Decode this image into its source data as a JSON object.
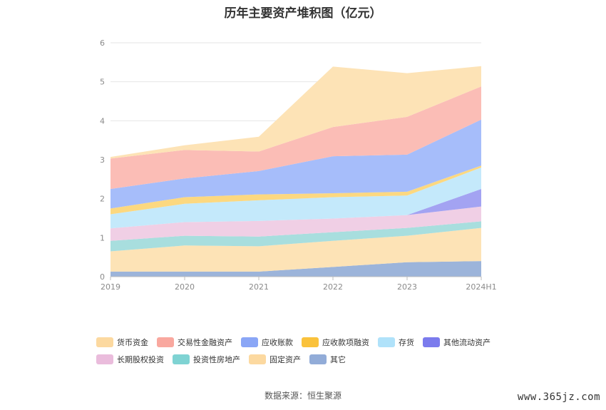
{
  "title": "历年主要资产堆积图（亿元）",
  "source": "数据来源：恒生聚源",
  "watermark": "www.365jz.com",
  "chart_data": {
    "type": "area",
    "stacked": true,
    "title": "历年主要资产堆积图（亿元）",
    "categories": [
      "2019",
      "2020",
      "2021",
      "2022",
      "2023",
      "2024H1"
    ],
    "ylim": [
      0,
      6
    ],
    "yticks": [
      0,
      1,
      2,
      3,
      4,
      5,
      6
    ],
    "grid": true,
    "legend_position": "bottom",
    "series": [
      {
        "name": "其它",
        "color": "#9cb4da",
        "values": [
          0.13,
          0.13,
          0.13,
          0.25,
          0.37,
          0.4
        ]
      },
      {
        "name": "固定资产",
        "color": "#fde3b6",
        "values": [
          0.52,
          0.67,
          0.65,
          0.67,
          0.68,
          0.85
        ]
      },
      {
        "name": "投资性房地产",
        "color": "#a8dede",
        "values": [
          0.27,
          0.25,
          0.25,
          0.22,
          0.2,
          0.17
        ]
      },
      {
        "name": "长期股权投资",
        "color": "#f0cfe5",
        "values": [
          0.32,
          0.35,
          0.4,
          0.35,
          0.33,
          0.38
        ]
      },
      {
        "name": "其他流动资产",
        "color": "#a3a3f2",
        "values": [
          0.0,
          0.0,
          0.0,
          0.0,
          0.0,
          0.45
        ]
      },
      {
        "name": "存货",
        "color": "#c4e9fb",
        "values": [
          0.36,
          0.47,
          0.53,
          0.55,
          0.5,
          0.55
        ]
      },
      {
        "name": "应收款项融资",
        "color": "#fcd880",
        "values": [
          0.15,
          0.17,
          0.15,
          0.1,
          0.1,
          0.05
        ]
      },
      {
        "name": "应收账款",
        "color": "#a6bdfa",
        "values": [
          0.5,
          0.48,
          0.6,
          0.95,
          0.95,
          1.18
        ]
      },
      {
        "name": "交易性金融资产",
        "color": "#fbbdb6",
        "values": [
          0.78,
          0.73,
          0.5,
          0.75,
          0.97,
          0.85
        ]
      },
      {
        "name": "货币资金",
        "color": "#fde3b6",
        "values": [
          0.04,
          0.12,
          0.38,
          1.55,
          1.12,
          0.52
        ]
      }
    ]
  },
  "legend": [
    {
      "label": "货币资金",
      "color": "#fcd9a0"
    },
    {
      "label": "交易性金融资产",
      "color": "#f9a89f"
    },
    {
      "label": "应收账款",
      "color": "#8aa6f6"
    },
    {
      "label": "应收款项融资",
      "color": "#fac23c"
    },
    {
      "label": "存货",
      "color": "#b0e2fa"
    },
    {
      "label": "其他流动资产",
      "color": "#7b7bed"
    },
    {
      "label": "长期股权投资",
      "color": "#eabcdc"
    },
    {
      "label": "投资性房地产",
      "color": "#7fd3d3"
    },
    {
      "label": "固定资产",
      "color": "#fcd9a0"
    },
    {
      "label": "其它",
      "color": "#92acd8"
    }
  ]
}
